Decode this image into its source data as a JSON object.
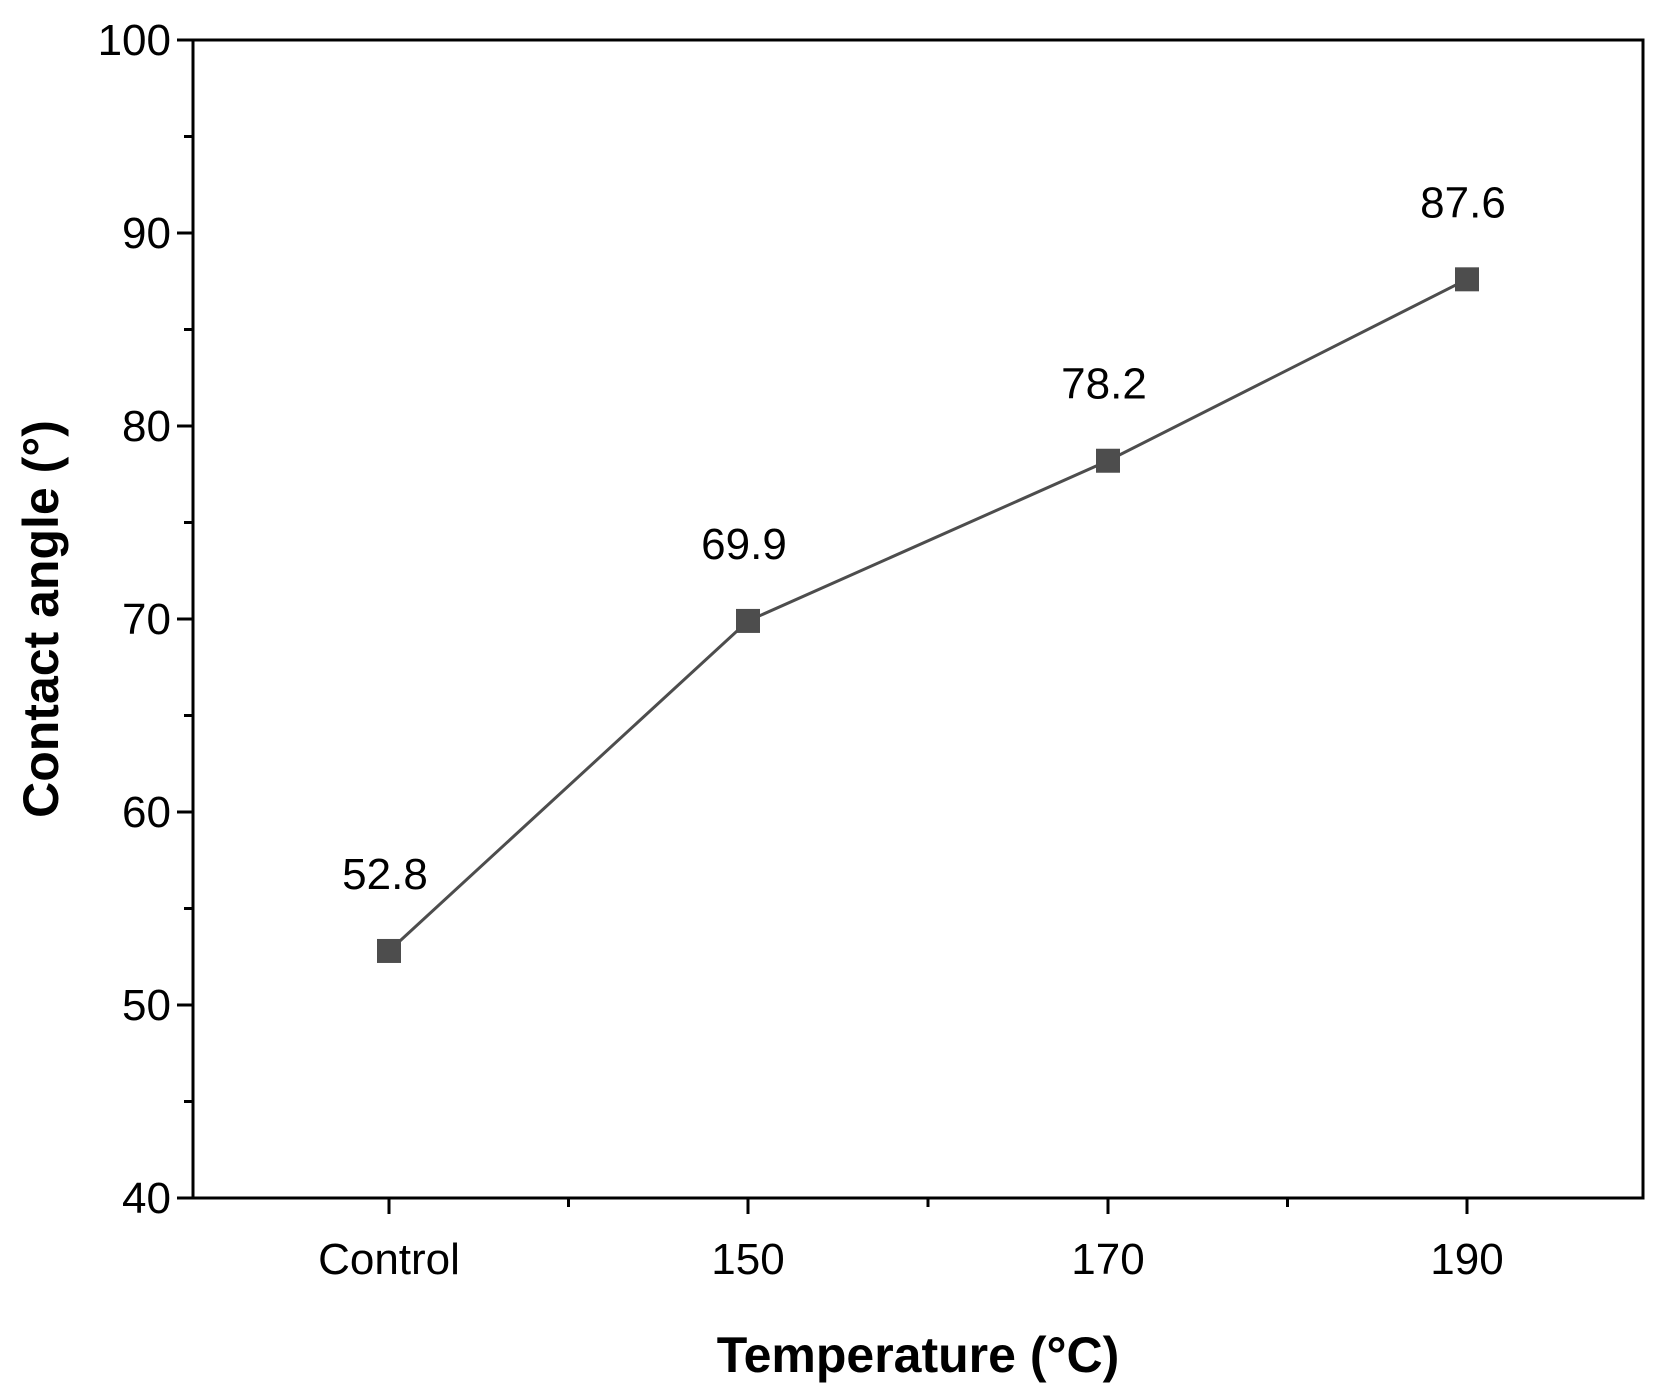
{
  "chart_data": {
    "type": "line",
    "title": "",
    "xlabel": "Temperature (°C)",
    "ylabel": "Contact angle (°)",
    "categories": [
      "Control",
      "150",
      "170",
      "190"
    ],
    "series": [
      {
        "name": "Contact angle",
        "values": [
          52.8,
          69.9,
          78.2,
          87.6
        ],
        "data_labels": [
          "52.8",
          "69.9",
          "78.2",
          "87.6"
        ],
        "color": "#4d4d4d",
        "marker": "square"
      }
    ],
    "ylim": [
      40,
      100
    ],
    "yticks": [
      40,
      50,
      60,
      70,
      80,
      90,
      100
    ],
    "yticks_minor_step": 5,
    "grid": false,
    "legend": "none"
  }
}
